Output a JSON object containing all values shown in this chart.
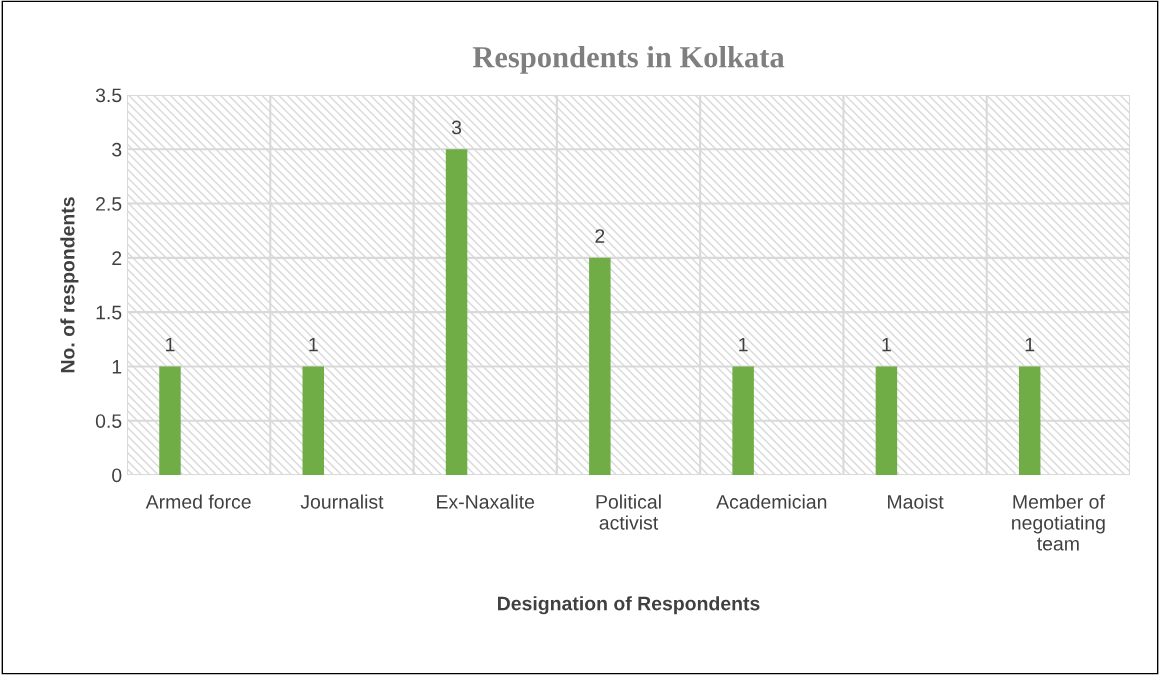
{
  "chart_data": {
    "type": "bar",
    "title": "Respondents in Kolkata",
    "xlabel": "Designation of Respondents",
    "ylabel": "No. of respondents",
    "categories": [
      "Armed force",
      "Journalist",
      "Ex-Naxalite",
      "Political\nactivist",
      "Academician",
      "Maoist",
      "Member of\nnegotiating\nteam"
    ],
    "values": [
      1,
      1,
      3,
      2,
      1,
      1,
      1
    ],
    "color": "#70ad47",
    "ylim": [
      0,
      3.5
    ],
    "yticks": [
      0,
      0.5,
      1,
      1.5,
      2,
      2.5,
      3,
      3.5
    ],
    "grid": true,
    "data_labels": true
  }
}
